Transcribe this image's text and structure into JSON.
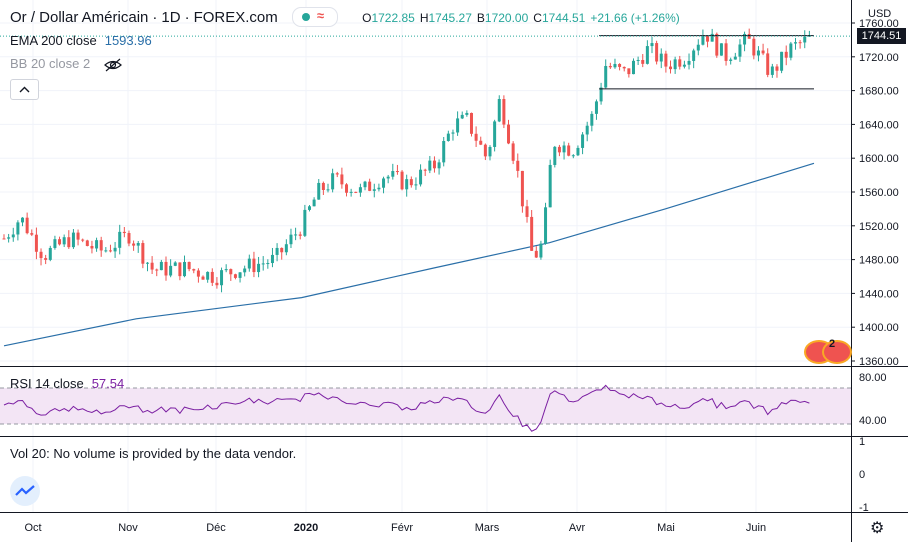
{
  "header": {
    "symbol": "Or / Dollar Américain",
    "interval": "1D",
    "exchange": "FOREX.com",
    "ohlc": [
      {
        "k": "O",
        "v": "1722.85"
      },
      {
        "k": "H",
        "v": "1745.27"
      },
      {
        "k": "B",
        "v": "1720.00"
      },
      {
        "k": "C",
        "v": "1744.51"
      }
    ],
    "change": "+21.66 (+1.26%)"
  },
  "indicators": {
    "ema_label": "EMA 200 close",
    "ema_value": "1593.96",
    "bb_label": "BB 20 close 2",
    "rsi_label": "RSI 14 close",
    "rsi_value": "57.54",
    "vol_label": "Vol 20: No volume is provided by the data vendor."
  },
  "price_axis": {
    "currency": "USD",
    "current_price": "1744.51",
    "ticks": [
      "1760.00",
      "1720.00",
      "1680.00",
      "1640.00",
      "1600.00",
      "1560.00",
      "1520.00",
      "1480.00",
      "1440.00",
      "1400.00",
      "1360.00"
    ]
  },
  "rsi_axis": {
    "ticks": [
      "80.00",
      "40.00"
    ]
  },
  "vol_axis": {
    "ticks": [
      "1",
      "0",
      "-1"
    ]
  },
  "time_axis": {
    "labels": [
      "Oct",
      "Nov",
      "Déc",
      "2020",
      "Févr",
      "Mars",
      "Avr",
      "Mai",
      "Juin"
    ]
  },
  "event_count": "2",
  "colors": {
    "up": "#26a69a",
    "down": "#ef5350",
    "ema": "#2a6fa8",
    "rsi": "#7b1fa2",
    "rsi_band": "#f3e5f5"
  },
  "chart_data": [
    {
      "type": "candlestick",
      "x_labels": [
        "Oct",
        "Nov",
        "Déc",
        "2020",
        "Févr",
        "Mars",
        "Avr",
        "Mai",
        "Juin"
      ],
      "ylim": [
        1350,
        1770
      ],
      "series": [
        {
          "name": "Or / Dollar Américain",
          "anchors": [
            {
              "d": 0,
              "c": 1505
            },
            {
              "d": 5,
              "c": 1530
            },
            {
              "d": 12,
              "c": 1485
            },
            {
              "d": 20,
              "c": 1505
            },
            {
              "d": 30,
              "c": 1490
            },
            {
              "d": 38,
              "c": 1510
            },
            {
              "d": 45,
              "c": 1468
            },
            {
              "d": 55,
              "c": 1470
            },
            {
              "d": 64,
              "c": 1460
            },
            {
              "d": 72,
              "c": 1470
            },
            {
              "d": 82,
              "c": 1480
            },
            {
              "d": 90,
              "c": 1520
            },
            {
              "d": 95,
              "c": 1560
            },
            {
              "d": 100,
              "c": 1575
            },
            {
              "d": 108,
              "c": 1560
            },
            {
              "d": 115,
              "c": 1580
            },
            {
              "d": 122,
              "c": 1570
            },
            {
              "d": 130,
              "c": 1590
            },
            {
              "d": 136,
              "c": 1640
            },
            {
              "d": 140,
              "c": 1645
            },
            {
              "d": 146,
              "c": 1600
            },
            {
              "d": 150,
              "c": 1670
            },
            {
              "d": 155,
              "c": 1590
            },
            {
              "d": 160,
              "c": 1480
            },
            {
              "d": 163,
              "c": 1500
            },
            {
              "d": 166,
              "c": 1620
            },
            {
              "d": 172,
              "c": 1610
            },
            {
              "d": 178,
              "c": 1650
            },
            {
              "d": 182,
              "c": 1710
            },
            {
              "d": 188,
              "c": 1700
            },
            {
              "d": 195,
              "c": 1730
            },
            {
              "d": 200,
              "c": 1710
            },
            {
              "d": 206,
              "c": 1720
            },
            {
              "d": 212,
              "c": 1750
            },
            {
              "d": 218,
              "c": 1720
            },
            {
              "d": 225,
              "c": 1740
            },
            {
              "d": 232,
              "c": 1700
            },
            {
              "d": 238,
              "c": 1730
            },
            {
              "d": 245,
              "c": 1744
            }
          ]
        },
        {
          "name": "EMA 200 close",
          "points": [
            {
              "d": 0,
              "v": 1378
            },
            {
              "d": 40,
              "v": 1410
            },
            {
              "d": 90,
              "v": 1435
            },
            {
              "d": 130,
              "v": 1470
            },
            {
              "d": 165,
              "v": 1500
            },
            {
              "d": 200,
              "v": 1540
            },
            {
              "d": 245,
              "v": 1594
            }
          ]
        }
      ],
      "levels": [
        {
          "y": 1745,
          "from_d": 180,
          "to_d": 245
        },
        {
          "y": 1682,
          "from_d": 180,
          "to_d": 245
        }
      ]
    },
    {
      "type": "line",
      "series": [
        {
          "name": "RSI 14 close",
          "last": 57.54
        }
      ],
      "ylim": [
        20,
        90
      ],
      "bands": [
        70,
        30
      ]
    }
  ]
}
